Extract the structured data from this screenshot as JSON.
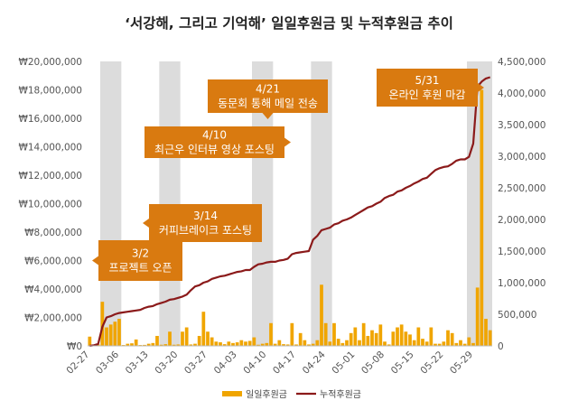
{
  "chart_data": {
    "type": "bar+line",
    "title": "‘서강해, 그리고 기억해’ 일일후원금 및 누적후원금 추이",
    "y_left_ticks": [
      "₩0",
      "₩2,000,000",
      "₩4,000,000",
      "₩6,000,000",
      "₩8,000,000",
      "₩10,000,000",
      "₩12,000,000",
      "₩14,000,000",
      "₩16,000,000",
      "₩18,000,000",
      "₩20,000,000"
    ],
    "y_left_range": [
      0,
      20000000
    ],
    "y_right_ticks": [
      "0",
      "500,000",
      "1,000,000",
      "1,500,000",
      "2,000,000",
      "2,500,000",
      "3,000,000",
      "3,500,000",
      "4,000,000",
      "4,500,000"
    ],
    "y_right_range": [
      0,
      4500000
    ],
    "x_ticks": [
      "02-27",
      "03-06",
      "03-13",
      "03-20",
      "03-27",
      "04-03",
      "04-10",
      "04-17",
      "04-24",
      "05-01",
      "05-08",
      "05-15",
      "05-22",
      "05-29"
    ],
    "days": [
      "02-27",
      "02-28",
      "03-01",
      "03-02",
      "03-03",
      "03-04",
      "03-05",
      "03-06",
      "03-07",
      "03-08",
      "03-09",
      "03-10",
      "03-11",
      "03-12",
      "03-13",
      "03-14",
      "03-15",
      "03-16",
      "03-17",
      "03-18",
      "03-19",
      "03-20",
      "03-21",
      "03-22",
      "03-23",
      "03-24",
      "03-25",
      "03-26",
      "03-27",
      "03-28",
      "03-29",
      "03-30",
      "03-31",
      "04-01",
      "04-02",
      "04-03",
      "04-04",
      "04-05",
      "04-06",
      "04-07",
      "04-08",
      "04-09",
      "04-10",
      "04-11",
      "04-12",
      "04-13",
      "04-14",
      "04-15",
      "04-16",
      "04-17",
      "04-18",
      "04-19",
      "04-20",
      "04-21",
      "04-22",
      "04-23",
      "04-24",
      "04-25",
      "04-26",
      "04-27",
      "04-28",
      "04-29",
      "04-30",
      "05-01",
      "05-02",
      "05-03",
      "05-04",
      "05-05",
      "05-06",
      "05-07",
      "05-08",
      "05-09",
      "05-10",
      "05-11",
      "05-12",
      "05-13",
      "05-14",
      "05-15",
      "05-16",
      "05-17",
      "05-18",
      "05-19",
      "05-20",
      "05-21",
      "05-22",
      "05-23",
      "05-24",
      "05-25",
      "05-26",
      "05-27",
      "05-28",
      "05-29",
      "05-30",
      "05-31",
      "06-01",
      "06-02"
    ],
    "series": [
      {
        "name": "일일후원금",
        "axis": "left",
        "color": "#f0a500",
        "values": [
          650000,
          80000,
          100000,
          3100000,
          1300000,
          1500000,
          1700000,
          1900000,
          60000,
          150000,
          180000,
          450000,
          60000,
          70000,
          150000,
          200000,
          700000,
          80000,
          120000,
          1000000,
          80000,
          100000,
          1000000,
          1300000,
          100000,
          150000,
          700000,
          2400000,
          1000000,
          600000,
          300000,
          250000,
          120000,
          300000,
          200000,
          250000,
          400000,
          300000,
          350000,
          600000,
          80000,
          150000,
          200000,
          1600000,
          150000,
          400000,
          120000,
          100000,
          1600000,
          100000,
          900000,
          400000,
          100000,
          150000,
          400000,
          4300000,
          1600000,
          300000,
          1600000,
          500000,
          200000,
          400000,
          900000,
          1300000,
          400000,
          1600000,
          700000,
          1100000,
          900000,
          1500000,
          300000,
          100000,
          1000000,
          1300000,
          1500000,
          1000000,
          800000,
          400000,
          1300000,
          500000,
          300000,
          1300000,
          150000,
          150000,
          300000,
          1100000,
          900000,
          200000,
          400000,
          150000,
          600000,
          200000,
          4100000,
          18000000,
          1900000,
          1100000
        ]
      },
      {
        "name": "누적후원금",
        "axis": "right",
        "color": "#8b1a1a",
        "values": [
          0,
          10000,
          30000,
          300000,
          450000,
          470000,
          500000,
          520000,
          530000,
          540000,
          550000,
          560000,
          570000,
          600000,
          620000,
          630000,
          660000,
          680000,
          700000,
          730000,
          740000,
          760000,
          780000,
          810000,
          880000,
          940000,
          960000,
          1000000,
          1020000,
          1060000,
          1080000,
          1100000,
          1110000,
          1130000,
          1150000,
          1170000,
          1180000,
          1200000,
          1200000,
          1250000,
          1290000,
          1300000,
          1320000,
          1330000,
          1330000,
          1350000,
          1360000,
          1380000,
          1450000,
          1470000,
          1480000,
          1490000,
          1500000,
          1680000,
          1740000,
          1830000,
          1850000,
          1870000,
          1920000,
          1940000,
          1980000,
          2000000,
          2030000,
          2070000,
          2110000,
          2150000,
          2190000,
          2210000,
          2250000,
          2280000,
          2340000,
          2370000,
          2390000,
          2440000,
          2460000,
          2500000,
          2530000,
          2570000,
          2600000,
          2640000,
          2660000,
          2720000,
          2780000,
          2810000,
          2830000,
          2840000,
          2880000,
          2930000,
          2950000,
          2950000,
          2990000,
          3200000,
          4100000,
          4180000,
          4230000,
          4250000
        ]
      }
    ],
    "highlight_ranges": [
      [
        "03-02",
        "03-06"
      ],
      [
        "03-16",
        "03-20"
      ],
      [
        "04-07",
        "04-11"
      ],
      [
        "04-21",
        "04-25"
      ],
      [
        "05-28",
        "06-02"
      ]
    ],
    "annotations": [
      {
        "id": "a1",
        "date": "3/2",
        "text": "프로젝트 오픈",
        "target": "03-02"
      },
      {
        "id": "a2",
        "date": "3/14",
        "text": "커피브레이크 포스팅",
        "target": "03-14"
      },
      {
        "id": "a3",
        "date": "4/10",
        "text": "최근우 인터뷰 영상 포스팅",
        "target": "04-10"
      },
      {
        "id": "a4",
        "date": "4/21",
        "text": "동문회 통해 메일 전송",
        "target": "04-21"
      },
      {
        "id": "a5",
        "date": "5/31",
        "text": "온라인 후원 마감",
        "target": "05-31"
      }
    ],
    "annotation_color": "#d97a10",
    "highlight_color": "#dcdcdc",
    "legend": [
      "일일후원금",
      "누적후원금"
    ],
    "legend_position": "bottom"
  }
}
